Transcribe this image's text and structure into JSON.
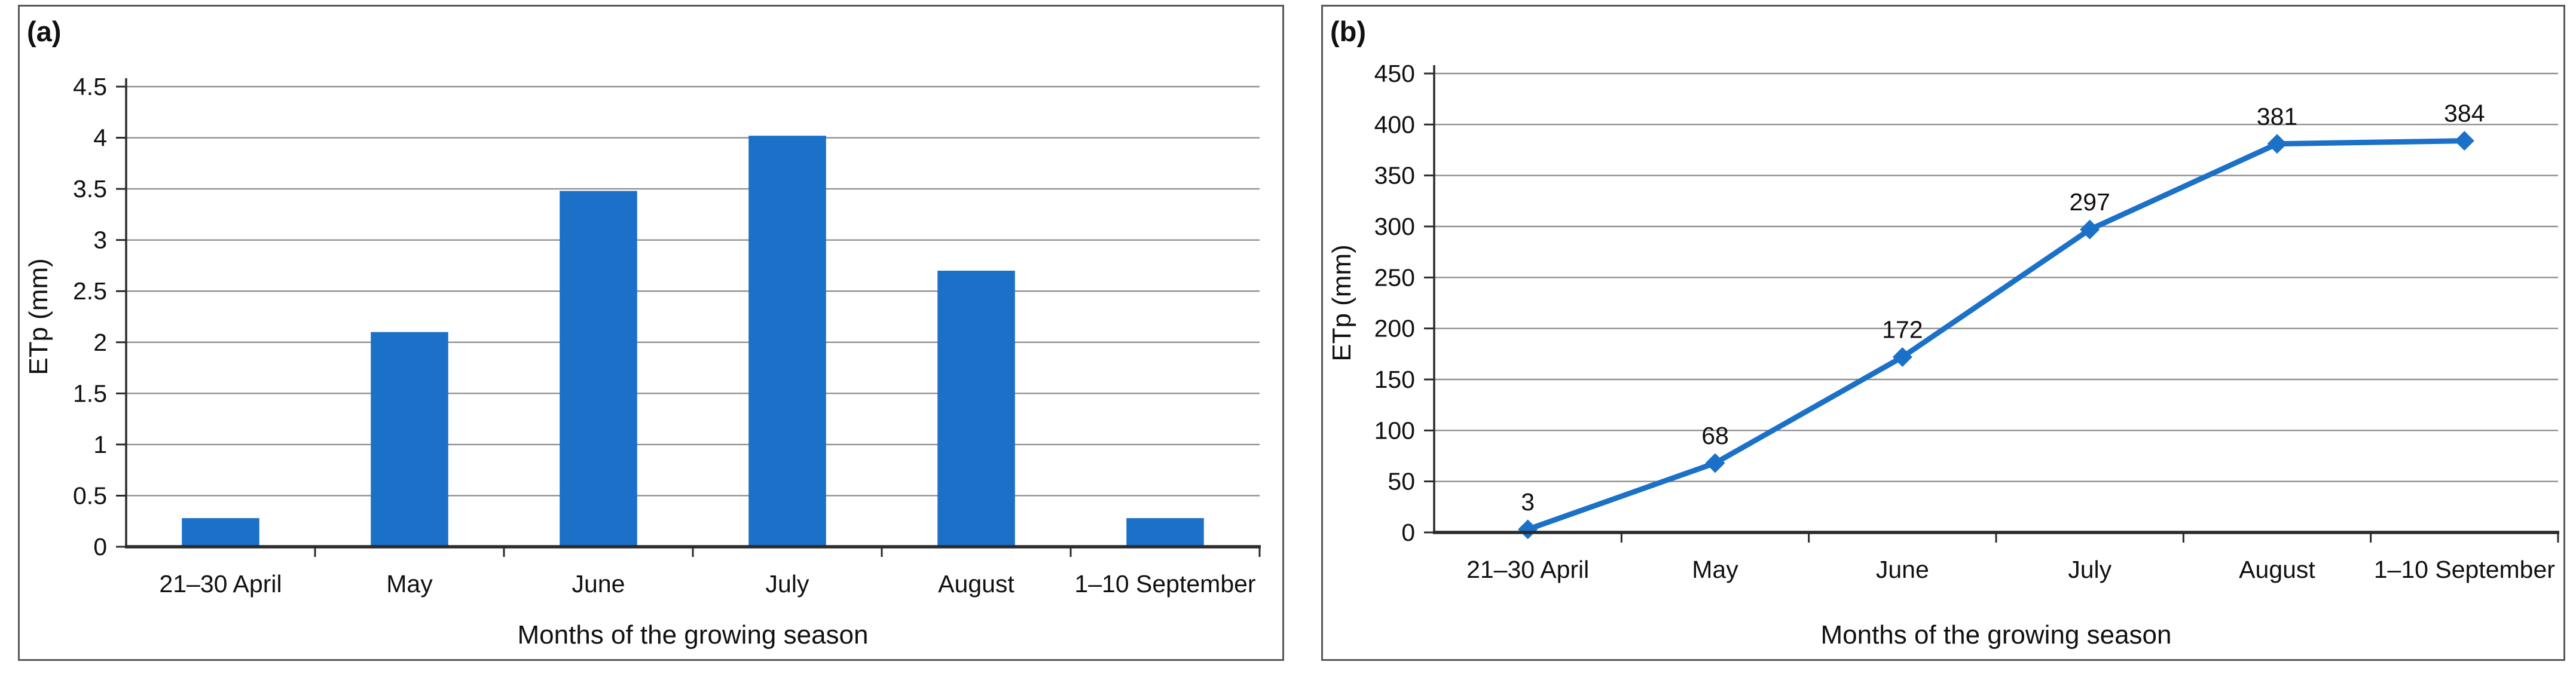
{
  "figure": {
    "background": "#ffffff",
    "panel_border_color": "#595959"
  },
  "styles": {
    "grid_color": "#909090",
    "axis_color": "#2b2b2b",
    "text_color": "#111111",
    "series_blue": "#1b70c8"
  },
  "chart_data": [
    {
      "id": "a",
      "type": "bar",
      "panel_label": "(a)",
      "categories": [
        "21–30 April",
        "May",
        "June",
        "July",
        "August",
        "1–10 September"
      ],
      "values": [
        0.28,
        2.1,
        3.48,
        4.02,
        2.7,
        0.28
      ],
      "xlabel": "Months of the growing season",
      "ylabel": "ETp (mm)",
      "ylim": [
        0,
        4.5
      ],
      "ytick_step": 0.5,
      "ytick_labels": [
        "0",
        "0.5",
        "1",
        "1.5",
        "2",
        "2.5",
        "3",
        "3.5",
        "4",
        "4.5"
      ],
      "grid": true,
      "legend": "none",
      "bar_color": "#1b70c8"
    },
    {
      "id": "b",
      "type": "line",
      "panel_label": "(b)",
      "categories": [
        "21–30 April",
        "May",
        "June",
        "July",
        "August",
        "1–10 September"
      ],
      "values": [
        3,
        68,
        172,
        297,
        381,
        384
      ],
      "data_labels": [
        "3",
        "68",
        "172",
        "297",
        "381",
        "384"
      ],
      "xlabel": "Months of the growing season",
      "ylabel": "ETp (mm)",
      "ylim": [
        0,
        450
      ],
      "ytick_step": 50,
      "ytick_labels": [
        "0",
        "50",
        "100",
        "150",
        "200",
        "250",
        "300",
        "350",
        "400",
        "450"
      ],
      "grid": true,
      "legend": "none",
      "line_color": "#1b70c8",
      "marker": "diamond"
    }
  ]
}
